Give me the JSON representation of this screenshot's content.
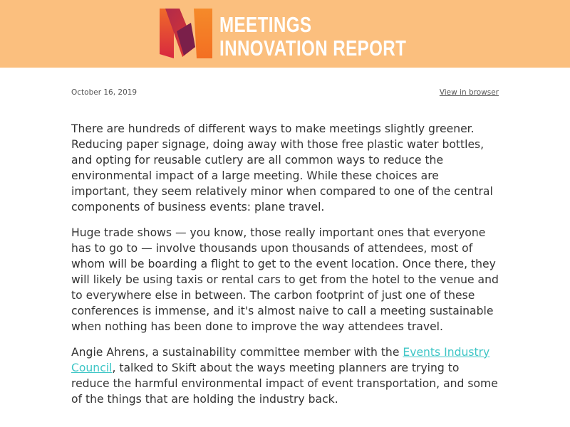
{
  "header": {
    "title_line1": "MEETINGS",
    "title_line2": "INNOVATION REPORT",
    "logo_icon": "m-logo-icon",
    "bg_color": "#fbbf7e"
  },
  "meta": {
    "date": "October 16, 2019",
    "view_in_browser": "View in browser"
  },
  "article": {
    "p1": "There are hundreds of different ways to make meetings slightly greener. Reducing paper signage, doing away with those free plastic water bottles, and opting for reusable cutlery are all common ways to reduce the environmental impact of a large meeting. While these choices are important, they seem relatively minor when compared to one of the central components of business events: plane travel.",
    "p2": "Huge trade shows — you know, those really important ones that everyone has to go to — involve thousands upon thousands of attendees, most of whom will be boarding a flight to get to the event location. Once there, they will likely be using taxis or rental cars to get from the hotel to the venue and to everywhere else in between. The carbon footprint of just one of these conferences is immense, and it's almost naive to call a meeting sustainable when nothing has been done to improve the way attendees travel.",
    "p3_before": "Angie Ahrens, a sustainability committee member with the ",
    "p3_link": "Events Industry Council",
    "p3_after": ", talked to Skift about the ways meeting planners are trying to reduce the harmful environmental impact of event transportation, and some of the things that are holding the industry back."
  },
  "colors": {
    "link": "#3ec6c6",
    "text": "#333333"
  }
}
